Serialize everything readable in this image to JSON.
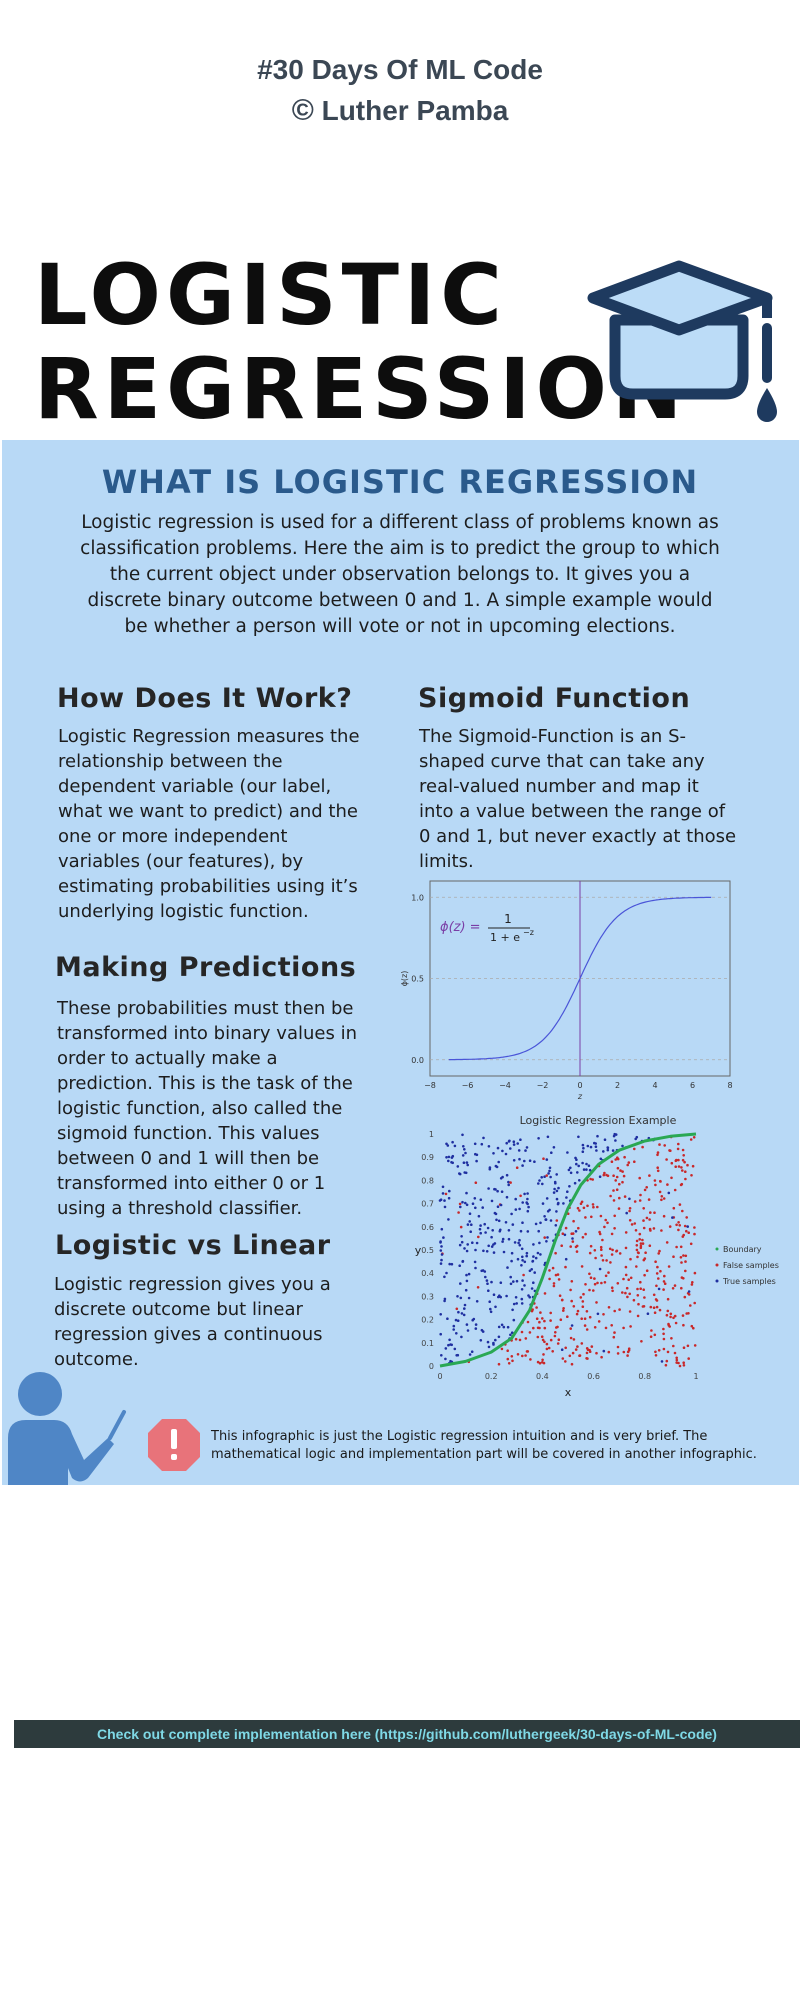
{
  "header": {
    "line1": "#30 Days Of ML Code",
    "copyright_symbol": "©",
    "author": "Luther Pamba"
  },
  "title": {
    "line1": "LOGISTIC",
    "line2": "REGRESSION"
  },
  "what_is": {
    "heading": "WHAT IS LOGISTIC REGRESSION",
    "lines": [
      "Logistic regression is used for a different class of problems known as",
      "classification problems. Here the aim is to predict the group to which",
      "the current object under observation belongs to. It gives you a",
      "discrete binary outcome between 0 and 1. A simple example would",
      "be whether a person will vote or not in upcoming elections."
    ]
  },
  "how": {
    "heading": "How Does It Work?",
    "lines": [
      "Logistic Regression measures the",
      "relationship between the",
      "dependent variable (our label,",
      "what we want to predict) and the",
      "one or more independent",
      "variables (our features), by",
      "estimating probabilities using it’s",
      "underlying logistic function."
    ]
  },
  "predictions": {
    "heading": "Making Predictions",
    "lines": [
      "These probabilities must then be",
      "transformed into binary values in",
      "order to actually make a",
      "prediction. This is the task of the",
      "logistic function, also called the",
      "sigmoid function. This values",
      "between 0 and 1 will then be",
      "transformed into either 0 or 1",
      "using a threshold classifier."
    ]
  },
  "vs": {
    "heading": "Logistic vs Linear",
    "lines": [
      "Logistic regression gives you a",
      "discrete outcome but linear",
      "regression gives a continuous",
      "outcome."
    ]
  },
  "sigmoid": {
    "heading": "Sigmoid Function",
    "lines": [
      "The Sigmoid-Function is an S-",
      "shaped curve that can take any",
      "real-valued number and map it",
      "into a value between the range of",
      "0 and 1, but never exactly at those",
      "limits."
    ]
  },
  "note": {
    "icon": "exclamation-icon",
    "line1": "This infographic is just the Logistic regression intuition and is very brief. The",
    "line2": "mathematical logic and implementation part will be covered in another infographic."
  },
  "footer": {
    "text": "Check out complete implementation here (https://github.com/luthergeek/30-days-of-ML-code)"
  },
  "colors": {
    "panel": "#b8d9f6",
    "heading_blue": "#2a5a8c",
    "cap_dark": "#1e3a5f",
    "cap_light": "#bcdcf7",
    "warning_red": "#e8737a",
    "footer_bg": "#2d3b3d",
    "footer_text": "#7fd9e6"
  },
  "chart_data": [
    {
      "type": "line",
      "title": "",
      "formula": {
        "lhs": "ϕ(z) =",
        "numerator": "1",
        "denominator": "1 + e",
        "exponent": "−z"
      },
      "xlabel": "z",
      "ylabel": "ϕ(z)",
      "xlim": [
        -8,
        8
      ],
      "ylim": [
        -0.1,
        1.1
      ],
      "x_ticks": [
        -8,
        -6,
        -4,
        -2,
        0,
        2,
        4,
        6,
        8
      ],
      "y_ticks": [
        0.0,
        0.5,
        1.0
      ],
      "y_tick_labels": [
        "0.0",
        "0.5",
        "1.0"
      ],
      "x_tick_labels": [
        "−8",
        "−6",
        "−4",
        "−2",
        "0",
        "2",
        "4",
        "6",
        "8"
      ],
      "x_range": [
        -7,
        7
      ],
      "function": "sigmoid",
      "vertical_line_at": 0,
      "grid": "horizontal dashed",
      "line_color": "#4a55d8",
      "vline_color": "#7a3ea6"
    },
    {
      "type": "scatter",
      "title": "Logistic Regression Example",
      "xlabel": "x",
      "ylabel": "y",
      "xlim": [
        0,
        1
      ],
      "ylim": [
        0,
        1
      ],
      "x_ticks": [
        0,
        0.2,
        0.4,
        0.6,
        0.8,
        1
      ],
      "x_tick_labels": [
        "0",
        "0.2",
        "0.4",
        "0.6",
        "0.8",
        "1"
      ],
      "y_ticks": [
        0,
        0.1,
        0.2,
        0.3,
        0.4,
        0.5,
        0.6,
        0.7,
        0.8,
        0.9,
        1
      ],
      "y_tick_labels": [
        "0",
        "0.1",
        "0.2",
        "0.3",
        "0.4",
        "0.5",
        "0.6",
        "0.7",
        "0.8",
        "0.9",
        "1"
      ],
      "legend": [
        "Boundary",
        "False samples",
        "True samples"
      ],
      "legend_position": "right",
      "boundary": {
        "x": [
          0,
          0.1,
          0.2,
          0.28,
          0.35,
          0.4,
          0.45,
          0.5,
          0.55,
          0.62,
          0.7,
          0.8,
          0.9,
          1.0
        ],
        "y": [
          0,
          0.02,
          0.06,
          0.12,
          0.24,
          0.38,
          0.54,
          0.68,
          0.78,
          0.87,
          0.93,
          0.97,
          0.99,
          1.0
        ],
        "color": "#2aa853"
      },
      "blue_color": "#1f2fa0",
      "red_color": "#c8282a"
    }
  ]
}
